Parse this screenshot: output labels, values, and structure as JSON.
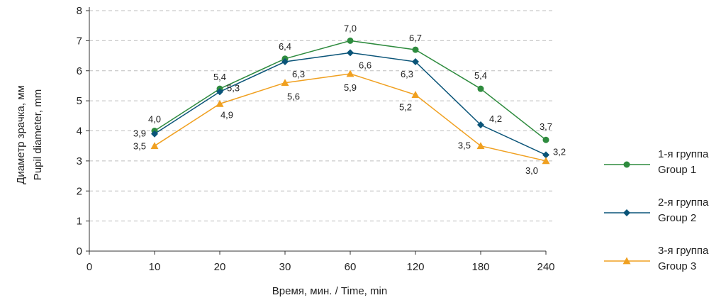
{
  "chart_data": {
    "type": "line",
    "categories": [
      "0",
      "10",
      "20",
      "30",
      "60",
      "120",
      "180",
      "240"
    ],
    "xlabel": "Время, мин. / Time, min",
    "ylabel": [
      "Диаметр зрачка, мм",
      "Pupil diameter, mm"
    ],
    "ylim": [
      0,
      8
    ],
    "yticks": [
      0,
      1,
      2,
      3,
      4,
      5,
      6,
      7,
      8
    ],
    "grid": true,
    "legend_position": "right",
    "series": [
      {
        "name": [
          "1-я группа",
          "Group 1"
        ],
        "color": "#2e8b3e",
        "marker": "circle",
        "values": [
          null,
          4.0,
          5.4,
          6.4,
          7.0,
          6.7,
          5.4,
          3.7
        ],
        "labels": [
          null,
          "4,0",
          "5,4",
          "6,4",
          "7,0",
          "6,7",
          "5,4",
          "3,7"
        ]
      },
      {
        "name": [
          "2-я группа",
          "Group 2"
        ],
        "color": "#0a5478",
        "marker": "diamond",
        "values": [
          null,
          3.9,
          5.3,
          6.3,
          6.6,
          6.3,
          4.2,
          3.2
        ],
        "labels": [
          null,
          "3,9",
          "5,3",
          "6,3",
          "6,6",
          "6,3",
          "4,2",
          "3,2"
        ]
      },
      {
        "name": [
          "3-я группа",
          "Group 3"
        ],
        "color": "#f0a020",
        "marker": "triangle",
        "values": [
          null,
          3.5,
          4.9,
          5.6,
          5.9,
          5.2,
          3.5,
          3.0
        ],
        "labels": [
          null,
          "3,5",
          "4,9",
          "5,6",
          "5,9",
          "5,2",
          "3,5",
          "3,0"
        ]
      }
    ]
  }
}
